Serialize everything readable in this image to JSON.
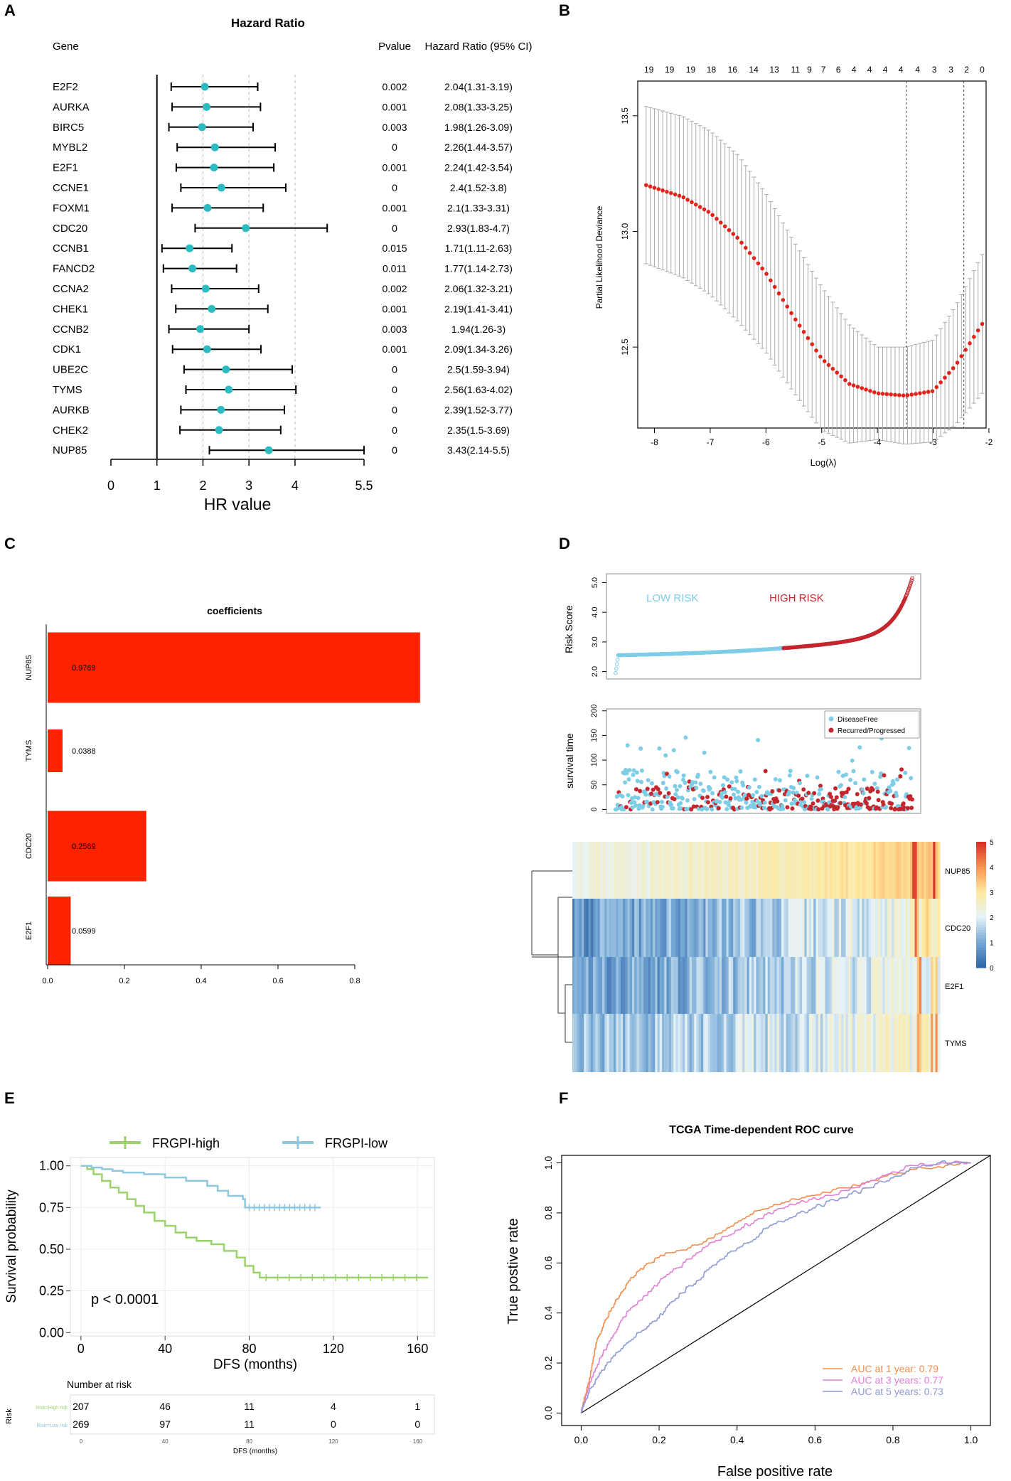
{
  "panel_letters": {
    "a": "A",
    "b": "B",
    "c": "C",
    "d": "D",
    "e": "E",
    "f": "F"
  },
  "colors": {
    "cyan": "#2BBBC0",
    "lasso_red": "#E2231A",
    "bar_red": "#FF2200",
    "low_risk": "#7ECDE6",
    "high_risk": "#C4262E",
    "km_high": "#9BD26C",
    "km_low": "#8EC7DE",
    "roc_1y": "#F38D4E",
    "roc_3y": "#E080D6",
    "roc_5y": "#8F9AD6"
  },
  "chart_data": [
    {
      "id": "A",
      "type": "forest",
      "title": "Hazard Ratio",
      "columns": {
        "gene": "Gene",
        "pvalue": "Pvalue",
        "hr": "Hazard Ratio (95% CI)"
      },
      "xlabel": "HR value",
      "xlim": [
        0,
        5.5
      ],
      "xticks": [
        0,
        1,
        2,
        3,
        4,
        5.5
      ],
      "xtick_labels": [
        "0",
        "1",
        "2",
        "3",
        "4",
        "5.5"
      ],
      "rows": [
        {
          "gene": "E2F2",
          "hr": 2.04,
          "lo": 1.31,
          "hi": 3.19,
          "p": "0.002",
          "label": "2.04(1.31-3.19)"
        },
        {
          "gene": "AURKA",
          "hr": 2.08,
          "lo": 1.33,
          "hi": 3.25,
          "p": "0.001",
          "label": "2.08(1.33-3.25)"
        },
        {
          "gene": "BIRC5",
          "hr": 1.98,
          "lo": 1.26,
          "hi": 3.09,
          "p": "0.003",
          "label": "1.98(1.26-3.09)"
        },
        {
          "gene": "MYBL2",
          "hr": 2.26,
          "lo": 1.44,
          "hi": 3.57,
          "p": "0",
          "label": "2.26(1.44-3.57)"
        },
        {
          "gene": "E2F1",
          "hr": 2.24,
          "lo": 1.42,
          "hi": 3.54,
          "p": "0.001",
          "label": "2.24(1.42-3.54)"
        },
        {
          "gene": "CCNE1",
          "hr": 2.4,
          "lo": 1.52,
          "hi": 3.8,
          "p": "0",
          "label": "2.4(1.52-3.8)"
        },
        {
          "gene": "FOXM1",
          "hr": 2.1,
          "lo": 1.33,
          "hi": 3.31,
          "p": "0.001",
          "label": "2.1(1.33-3.31)"
        },
        {
          "gene": "CDC20",
          "hr": 2.93,
          "lo": 1.83,
          "hi": 4.7,
          "p": "0",
          "label": "2.93(1.83-4.7)"
        },
        {
          "gene": "CCNB1",
          "hr": 1.71,
          "lo": 1.11,
          "hi": 2.63,
          "p": "0.015",
          "label": "1.71(1.11-2.63)"
        },
        {
          "gene": "FANCD2",
          "hr": 1.77,
          "lo": 1.14,
          "hi": 2.73,
          "p": "0.011",
          "label": "1.77(1.14-2.73)"
        },
        {
          "gene": "CCNA2",
          "hr": 2.06,
          "lo": 1.32,
          "hi": 3.21,
          "p": "0.002",
          "label": "2.06(1.32-3.21)"
        },
        {
          "gene": "CHEK1",
          "hr": 2.19,
          "lo": 1.41,
          "hi": 3.41,
          "p": "0.001",
          "label": "2.19(1.41-3.41)"
        },
        {
          "gene": "CCNB2",
          "hr": 1.94,
          "lo": 1.26,
          "hi": 3,
          "p": "0.003",
          "label": "1.94(1.26-3)"
        },
        {
          "gene": "CDK1",
          "hr": 2.09,
          "lo": 1.34,
          "hi": 3.26,
          "p": "0.001",
          "label": "2.09(1.34-3.26)"
        },
        {
          "gene": "UBE2C",
          "hr": 2.5,
          "lo": 1.59,
          "hi": 3.94,
          "p": "0",
          "label": "2.5(1.59-3.94)"
        },
        {
          "gene": "TYMS",
          "hr": 2.56,
          "lo": 1.63,
          "hi": 4.02,
          "p": "0",
          "label": "2.56(1.63-4.02)"
        },
        {
          "gene": "AURKB",
          "hr": 2.39,
          "lo": 1.52,
          "hi": 3.77,
          "p": "0",
          "label": "2.39(1.52-3.77)"
        },
        {
          "gene": "CHEK2",
          "hr": 2.35,
          "lo": 1.5,
          "hi": 3.69,
          "p": "0",
          "label": "2.35(1.5-3.69)"
        },
        {
          "gene": "NUP85",
          "hr": 3.43,
          "lo": 2.14,
          "hi": 5.5,
          "p": "0",
          "label": "3.43(2.14-5.5)"
        }
      ]
    },
    {
      "id": "B",
      "type": "scatter",
      "xlabel": "Log(λ)",
      "ylabel": "Partial Likelihood Deviance",
      "xlim": [
        -8.3,
        -2.05
      ],
      "ylim": [
        12.15,
        13.65
      ],
      "xticks": [
        -8,
        -7,
        -6,
        -5,
        -4,
        -3,
        -2
      ],
      "yticks": [
        12.5,
        13.0,
        13.5
      ],
      "xtick_labels": [
        "-8",
        "-7",
        "-6",
        "-5",
        "-4",
        "-3",
        "-2"
      ],
      "ytick_labels": [
        "12.5",
        "13.0",
        "13.5"
      ],
      "top_labels": [
        {
          "x": -8.1,
          "t": "19"
        },
        {
          "x": -7.73,
          "t": "19"
        },
        {
          "x": -7.35,
          "t": "19"
        },
        {
          "x": -6.98,
          "t": "18"
        },
        {
          "x": -6.6,
          "t": "16"
        },
        {
          "x": -6.22,
          "t": "14"
        },
        {
          "x": -5.85,
          "t": "13"
        },
        {
          "x": -5.47,
          "t": "11"
        },
        {
          "x": -5.22,
          "t": "9"
        },
        {
          "x": -4.97,
          "t": "7"
        },
        {
          "x": -4.7,
          "t": "6"
        },
        {
          "x": -4.42,
          "t": "4"
        },
        {
          "x": -4.14,
          "t": "4"
        },
        {
          "x": -3.86,
          "t": "4"
        },
        {
          "x": -3.58,
          "t": "4"
        },
        {
          "x": -3.28,
          "t": "4"
        },
        {
          "x": -2.98,
          "t": "3"
        },
        {
          "x": -2.68,
          "t": "3"
        },
        {
          "x": -2.4,
          "t": "2"
        },
        {
          "x": -2.12,
          "t": "0"
        }
      ],
      "vlines": [
        -3.48,
        -2.45
      ],
      "curve": {
        "x_start": -8.15,
        "x_end": -2.12,
        "n": 82,
        "anchors": [
          [
            -8.15,
            13.2
          ],
          [
            -7.5,
            13.15
          ],
          [
            -7.0,
            13.08
          ],
          [
            -6.5,
            12.97
          ],
          [
            -6.0,
            12.82
          ],
          [
            -5.5,
            12.63
          ],
          [
            -5.0,
            12.45
          ],
          [
            -4.5,
            12.34
          ],
          [
            -4.0,
            12.3
          ],
          [
            -3.5,
            12.29
          ],
          [
            -3.0,
            12.31
          ],
          [
            -2.6,
            12.42
          ],
          [
            -2.12,
            12.6
          ]
        ],
        "err_anchors": [
          [
            -8.15,
            0.34
          ],
          [
            -6.5,
            0.36
          ],
          [
            -5.0,
            0.31
          ],
          [
            -4.0,
            0.2
          ],
          [
            -3.0,
            0.22
          ],
          [
            -2.12,
            0.3
          ]
        ]
      }
    },
    {
      "id": "C",
      "type": "bar",
      "title": "coefficients",
      "categories": [
        "NUP85",
        "TYMS",
        "CDC20",
        "E2F1"
      ],
      "values": [
        0.9769,
        0.0388,
        0.2569,
        0.0599
      ],
      "value_labels": [
        "0.9769",
        "0.0388",
        "0.2569",
        "0.0599"
      ],
      "xlim": [
        0,
        0.8
      ],
      "xticks": [
        0,
        0.2,
        0.4,
        0.6,
        0.8
      ],
      "xtick_labels": [
        "0.0",
        "0.2",
        "0.4",
        "0.6",
        "0.8"
      ],
      "note": "NUP85 bar is drawn clipped at approximately 0.97 on a 0-0.8 labeled axis as in the original"
    },
    {
      "id": "D",
      "type": "risk-score / survival / heatmap",
      "risk_score": {
        "ylabel": "Risk Score",
        "yticks": [
          2.0,
          3.0,
          4.0,
          5.0
        ],
        "ytick_labels": [
          "2.0",
          "3.0",
          "4.0",
          "5.0"
        ],
        "low_label": "LOW RISK",
        "high_label": "HIGH RISK",
        "n_low": 269,
        "n_high": 207
      },
      "survival": {
        "ylabel": "survival time",
        "yticks": [
          0,
          50,
          100,
          150,
          200
        ],
        "ytick_labels": [
          "0",
          "50",
          "100",
          "150",
          "200"
        ],
        "legend": [
          "DiseaseFree",
          "Recurred/Progressed"
        ]
      },
      "heatmap": {
        "rows": [
          "NUP85",
          "CDC20",
          "E2F1",
          "TYMS"
        ],
        "scale": [
          0,
          1,
          2,
          3,
          4,
          5
        ],
        "scale_labels": [
          "0",
          "1",
          "2",
          "3",
          "4",
          "5"
        ]
      }
    },
    {
      "id": "E",
      "type": "line",
      "legend": [
        "FRGPI-high",
        "FRGPI-low"
      ],
      "xlabel": "DFS (months)",
      "ylabel": "Survival probability",
      "xlim": [
        -5,
        168
      ],
      "ylim": [
        -0.02,
        1.05
      ],
      "xticks": [
        0,
        40,
        80,
        120,
        160
      ],
      "xtick_labels": [
        "0",
        "40",
        "80",
        "120",
        "160"
      ],
      "yticks": [
        0,
        0.25,
        0.5,
        0.75,
        1
      ],
      "ytick_labels": [
        "0.00",
        "0.25",
        "0.50",
        "0.75",
        "1.00"
      ],
      "pvalue": "p < 0.0001",
      "series": [
        {
          "name": "FRGPI-high",
          "points": [
            [
              0,
              1
            ],
            [
              3,
              0.98
            ],
            [
              6,
              0.95
            ],
            [
              10,
              0.91
            ],
            [
              14,
              0.87
            ],
            [
              18,
              0.84
            ],
            [
              22,
              0.8
            ],
            [
              26,
              0.76
            ],
            [
              30,
              0.72
            ],
            [
              35,
              0.67
            ],
            [
              40,
              0.64
            ],
            [
              45,
              0.6
            ],
            [
              50,
              0.57
            ],
            [
              55,
              0.55
            ],
            [
              62,
              0.53
            ],
            [
              68,
              0.49
            ],
            [
              74,
              0.45
            ],
            [
              78,
              0.4
            ],
            [
              82,
              0.36
            ],
            [
              85,
              0.33
            ],
            [
              165,
              0.33
            ]
          ]
        },
        {
          "name": "FRGPI-low",
          "points": [
            [
              0,
              1
            ],
            [
              5,
              0.99
            ],
            [
              10,
              0.98
            ],
            [
              15,
              0.97
            ],
            [
              20,
              0.96
            ],
            [
              30,
              0.95
            ],
            [
              40,
              0.93
            ],
            [
              50,
              0.91
            ],
            [
              60,
              0.88
            ],
            [
              65,
              0.85
            ],
            [
              70,
              0.82
            ],
            [
              77,
              0.8
            ],
            [
              78,
              0.75
            ],
            [
              114,
              0.75
            ]
          ]
        }
      ],
      "risk_table": {
        "title": "Number at risk",
        "ylabel": "Risk",
        "xlabel": "DFS (months)",
        "row_labels": [
          "Risk=High risk",
          "Risk=Low risk"
        ],
        "rows": [
          [
            "207",
            "46",
            "11",
            "4",
            "1"
          ],
          [
            "269",
            "97",
            "11",
            "0",
            "0"
          ]
        ]
      }
    },
    {
      "id": "F",
      "type": "line",
      "title": "TCGA Time-dependent ROC curve",
      "xlabel": "False positive rate",
      "ylabel": "True postive rate",
      "xlim": [
        -0.05,
        1.05
      ],
      "ylim": [
        -0.05,
        1.03
      ],
      "xticks": [
        0,
        0.2,
        0.4,
        0.6,
        0.8,
        1
      ],
      "xtick_labels": [
        "0.0",
        "0.2",
        "0.4",
        "0.6",
        "0.8",
        "1.0"
      ],
      "yticks": [
        0,
        0.2,
        0.4,
        0.6,
        0.8,
        1
      ],
      "ytick_labels": [
        "0.0",
        "0.2",
        "0.4",
        "0.6",
        "0.8",
        "1.0"
      ],
      "series": [
        {
          "name": "AUC at 1 year: 0.79",
          "points": [
            [
              0,
              0
            ],
            [
              0.02,
              0.12
            ],
            [
              0.04,
              0.28
            ],
            [
              0.06,
              0.36
            ],
            [
              0.08,
              0.42
            ],
            [
              0.1,
              0.47
            ],
            [
              0.12,
              0.52
            ],
            [
              0.15,
              0.57
            ],
            [
              0.18,
              0.6
            ],
            [
              0.22,
              0.64
            ],
            [
              0.28,
              0.66
            ],
            [
              0.34,
              0.7
            ],
            [
              0.4,
              0.76
            ],
            [
              0.46,
              0.81
            ],
            [
              0.52,
              0.84
            ],
            [
              0.6,
              0.87
            ],
            [
              0.68,
              0.9
            ],
            [
              0.75,
              0.93
            ],
            [
              0.82,
              0.96
            ],
            [
              0.88,
              0.98
            ],
            [
              0.94,
              0.99
            ],
            [
              1,
              1
            ]
          ]
        },
        {
          "name": "AUC at 3 years: 0.77",
          "points": [
            [
              0,
              0
            ],
            [
              0.02,
              0.1
            ],
            [
              0.05,
              0.22
            ],
            [
              0.08,
              0.3
            ],
            [
              0.1,
              0.36
            ],
            [
              0.13,
              0.42
            ],
            [
              0.17,
              0.47
            ],
            [
              0.2,
              0.52
            ],
            [
              0.25,
              0.58
            ],
            [
              0.3,
              0.64
            ],
            [
              0.35,
              0.69
            ],
            [
              0.4,
              0.73
            ],
            [
              0.45,
              0.77
            ],
            [
              0.5,
              0.81
            ],
            [
              0.56,
              0.84
            ],
            [
              0.62,
              0.86
            ],
            [
              0.7,
              0.9
            ],
            [
              0.78,
              0.95
            ],
            [
              0.85,
              0.99
            ],
            [
              0.93,
              1.0
            ],
            [
              1,
              1
            ]
          ]
        },
        {
          "name": "AUC at 5 years: 0.73",
          "points": [
            [
              0,
              0
            ],
            [
              0.02,
              0.08
            ],
            [
              0.05,
              0.16
            ],
            [
              0.08,
              0.22
            ],
            [
              0.12,
              0.28
            ],
            [
              0.16,
              0.33
            ],
            [
              0.2,
              0.38
            ],
            [
              0.23,
              0.44
            ],
            [
              0.26,
              0.48
            ],
            [
              0.3,
              0.53
            ],
            [
              0.34,
              0.59
            ],
            [
              0.38,
              0.64
            ],
            [
              0.43,
              0.68
            ],
            [
              0.48,
              0.74
            ],
            [
              0.54,
              0.78
            ],
            [
              0.6,
              0.82
            ],
            [
              0.67,
              0.86
            ],
            [
              0.74,
              0.9
            ],
            [
              0.8,
              0.94
            ],
            [
              0.86,
              0.98
            ],
            [
              0.92,
              1.0
            ],
            [
              1,
              1
            ]
          ]
        }
      ]
    }
  ]
}
